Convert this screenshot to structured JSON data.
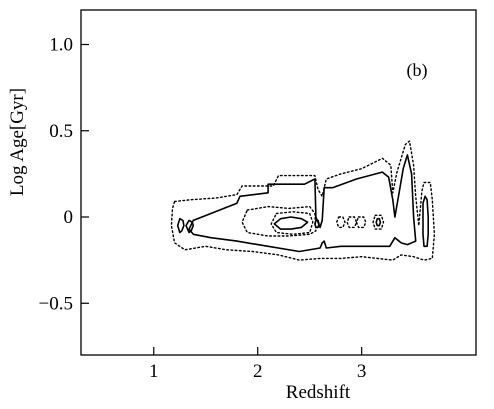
{
  "chart_data": {
    "type": "contour",
    "panel_label": "(b)",
    "xlabel": "Redshift",
    "ylabel": "Log  Age[Gyr]",
    "xlim": [
      0.3,
      4.1
    ],
    "ylim": [
      -0.8,
      1.2
    ],
    "x_ticks": [
      {
        "value": 1,
        "label": "1"
      },
      {
        "value": 2,
        "label": "2"
      },
      {
        "value": 3,
        "label": "3"
      }
    ],
    "y_ticks": [
      {
        "value": 1.0,
        "label": "1.0"
      },
      {
        "value": 0.5,
        "label": "0.5"
      },
      {
        "value": 0.0,
        "label": "0"
      },
      {
        "value": -0.5,
        "label": "−0.5"
      }
    ],
    "grid": false,
    "series": [
      {
        "style": "solid",
        "polygons": [
          [
            [
              1.38,
              -0.02
            ],
            [
              1.55,
              0.02
            ],
            [
              1.8,
              0.08
            ],
            [
              1.83,
              0.12
            ],
            [
              2.1,
              0.14
            ],
            [
              2.1,
              0.19
            ],
            [
              2.45,
              0.19
            ],
            [
              2.55,
              0.22
            ],
            [
              2.56,
              0.0
            ],
            [
              2.6,
              -0.06
            ],
            [
              2.62,
              -0.02
            ],
            [
              2.64,
              0.17
            ],
            [
              2.72,
              0.17
            ],
            [
              2.95,
              0.22
            ],
            [
              3.2,
              0.26
            ],
            [
              3.26,
              0.23
            ],
            [
              3.3,
              0.1
            ],
            [
              3.32,
              0.0
            ],
            [
              3.36,
              0.14
            ],
            [
              3.4,
              0.28
            ],
            [
              3.44,
              0.36
            ],
            [
              3.48,
              0.25
            ],
            [
              3.5,
              0.0
            ],
            [
              3.52,
              -0.14
            ],
            [
              3.44,
              -0.16
            ],
            [
              3.38,
              -0.15
            ],
            [
              3.32,
              -0.12
            ],
            [
              3.27,
              -0.17
            ],
            [
              3.0,
              -0.17
            ],
            [
              2.8,
              -0.17
            ],
            [
              2.66,
              -0.18
            ],
            [
              2.64,
              -0.14
            ],
            [
              2.62,
              -0.15
            ],
            [
              2.6,
              -0.18
            ],
            [
              2.4,
              -0.2
            ],
            [
              2.0,
              -0.16
            ],
            [
              1.8,
              -0.14
            ],
            [
              1.55,
              -0.12
            ],
            [
              1.38,
              -0.1
            ],
            [
              1.34,
              -0.07
            ]
          ],
          [
            [
              2.22,
              -0.01
            ],
            [
              2.32,
              0.0
            ],
            [
              2.42,
              -0.01
            ],
            [
              2.48,
              -0.03
            ],
            [
              2.42,
              -0.06
            ],
            [
              2.32,
              -0.07
            ],
            [
              2.22,
              -0.07
            ],
            [
              2.16,
              -0.04
            ]
          ],
          [
            [
              1.25,
              -0.01
            ],
            [
              1.28,
              -0.02
            ],
            [
              1.29,
              -0.05
            ],
            [
              1.27,
              -0.08
            ],
            [
              1.25,
              -0.09
            ],
            [
              1.23,
              -0.05
            ]
          ],
          [
            [
              1.34,
              -0.02
            ],
            [
              1.37,
              -0.03
            ],
            [
              1.38,
              -0.05
            ],
            [
              1.36,
              -0.08
            ],
            [
              1.34,
              -0.09
            ],
            [
              1.31,
              -0.05
            ]
          ],
          [
            [
              2.56,
              -0.02
            ],
            [
              2.58,
              -0.02
            ],
            [
              2.59,
              -0.04
            ],
            [
              2.58,
              -0.06
            ],
            [
              2.56,
              -0.06
            ],
            [
              2.55,
              -0.04
            ]
          ],
          [
            [
              3.15,
              -0.01
            ],
            [
              3.17,
              -0.01
            ],
            [
              3.18,
              -0.03
            ],
            [
              3.17,
              -0.05
            ],
            [
              3.15,
              -0.05
            ],
            [
              3.14,
              -0.03
            ]
          ],
          [
            [
              3.61,
              0.12
            ],
            [
              3.63,
              0.1
            ],
            [
              3.64,
              0.0
            ],
            [
              3.64,
              -0.1
            ],
            [
              3.63,
              -0.17
            ],
            [
              3.6,
              -0.17
            ],
            [
              3.59,
              -0.1
            ],
            [
              3.59,
              0.0
            ],
            [
              3.59,
              0.08
            ]
          ]
        ]
      },
      {
        "style": "dotted",
        "polygons": [
          [
            [
              1.2,
              0.09
            ],
            [
              1.35,
              0.1
            ],
            [
              1.6,
              0.11
            ],
            [
              1.8,
              0.13
            ],
            [
              1.85,
              0.18
            ],
            [
              2.15,
              0.18
            ],
            [
              2.2,
              0.24
            ],
            [
              2.55,
              0.24
            ],
            [
              2.58,
              0.16
            ],
            [
              2.62,
              0.12
            ],
            [
              2.66,
              0.22
            ],
            [
              2.8,
              0.25
            ],
            [
              3.0,
              0.28
            ],
            [
              3.2,
              0.34
            ],
            [
              3.28,
              0.3
            ],
            [
              3.3,
              0.14
            ],
            [
              3.34,
              0.26
            ],
            [
              3.42,
              0.42
            ],
            [
              3.46,
              0.44
            ],
            [
              3.5,
              0.3
            ],
            [
              3.52,
              0.12
            ],
            [
              3.55,
              -0.05
            ],
            [
              3.58,
              0.15
            ],
            [
              3.6,
              0.2
            ],
            [
              3.66,
              0.2
            ],
            [
              3.68,
              0.1
            ],
            [
              3.7,
              -0.1
            ],
            [
              3.68,
              -0.24
            ],
            [
              3.6,
              -0.25
            ],
            [
              3.5,
              -0.23
            ],
            [
              3.38,
              -0.22
            ],
            [
              3.3,
              -0.25
            ],
            [
              3.0,
              -0.23
            ],
            [
              2.8,
              -0.24
            ],
            [
              2.6,
              -0.24
            ],
            [
              2.4,
              -0.25
            ],
            [
              2.2,
              -0.22
            ],
            [
              1.95,
              -0.2
            ],
            [
              1.7,
              -0.19
            ],
            [
              1.5,
              -0.17
            ],
            [
              1.3,
              -0.19
            ],
            [
              1.2,
              -0.15
            ],
            [
              1.17,
              -0.05
            ],
            [
              1.18,
              0.05
            ]
          ],
          [
            [
              1.9,
              0.04
            ],
            [
              2.1,
              0.06
            ],
            [
              2.3,
              0.05
            ],
            [
              2.5,
              0.06
            ],
            [
              2.55,
              0.02
            ],
            [
              2.56,
              -0.08
            ],
            [
              2.5,
              -0.1
            ],
            [
              2.3,
              -0.11
            ],
            [
              2.1,
              -0.11
            ],
            [
              1.9,
              -0.09
            ],
            [
              1.85,
              -0.03
            ]
          ],
          [
            [
              2.18,
              0.02
            ],
            [
              2.34,
              0.03
            ],
            [
              2.5,
              0.02
            ],
            [
              2.53,
              -0.03
            ],
            [
              2.5,
              -0.09
            ],
            [
              2.34,
              -0.1
            ],
            [
              2.18,
              -0.09
            ],
            [
              2.13,
              -0.04
            ]
          ],
          [
            [
              2.78,
              0.0
            ],
            [
              2.82,
              0.0
            ],
            [
              2.84,
              -0.03
            ],
            [
              2.82,
              -0.06
            ],
            [
              2.78,
              -0.06
            ],
            [
              2.76,
              -0.03
            ]
          ],
          [
            [
              2.88,
              0.0
            ],
            [
              2.93,
              0.0
            ],
            [
              2.95,
              -0.03
            ],
            [
              2.93,
              -0.06
            ],
            [
              2.88,
              -0.06
            ],
            [
              2.86,
              -0.03
            ]
          ],
          [
            [
              2.97,
              0.0
            ],
            [
              3.02,
              0.0
            ],
            [
              3.04,
              -0.03
            ],
            [
              3.02,
              -0.06
            ],
            [
              2.97,
              -0.06
            ],
            [
              2.95,
              -0.03
            ]
          ],
          [
            [
              3.13,
              0.01
            ],
            [
              3.19,
              0.01
            ],
            [
              3.21,
              -0.03
            ],
            [
              3.19,
              -0.07
            ],
            [
              3.13,
              -0.07
            ],
            [
              3.11,
              -0.03
            ]
          ]
        ]
      }
    ]
  }
}
